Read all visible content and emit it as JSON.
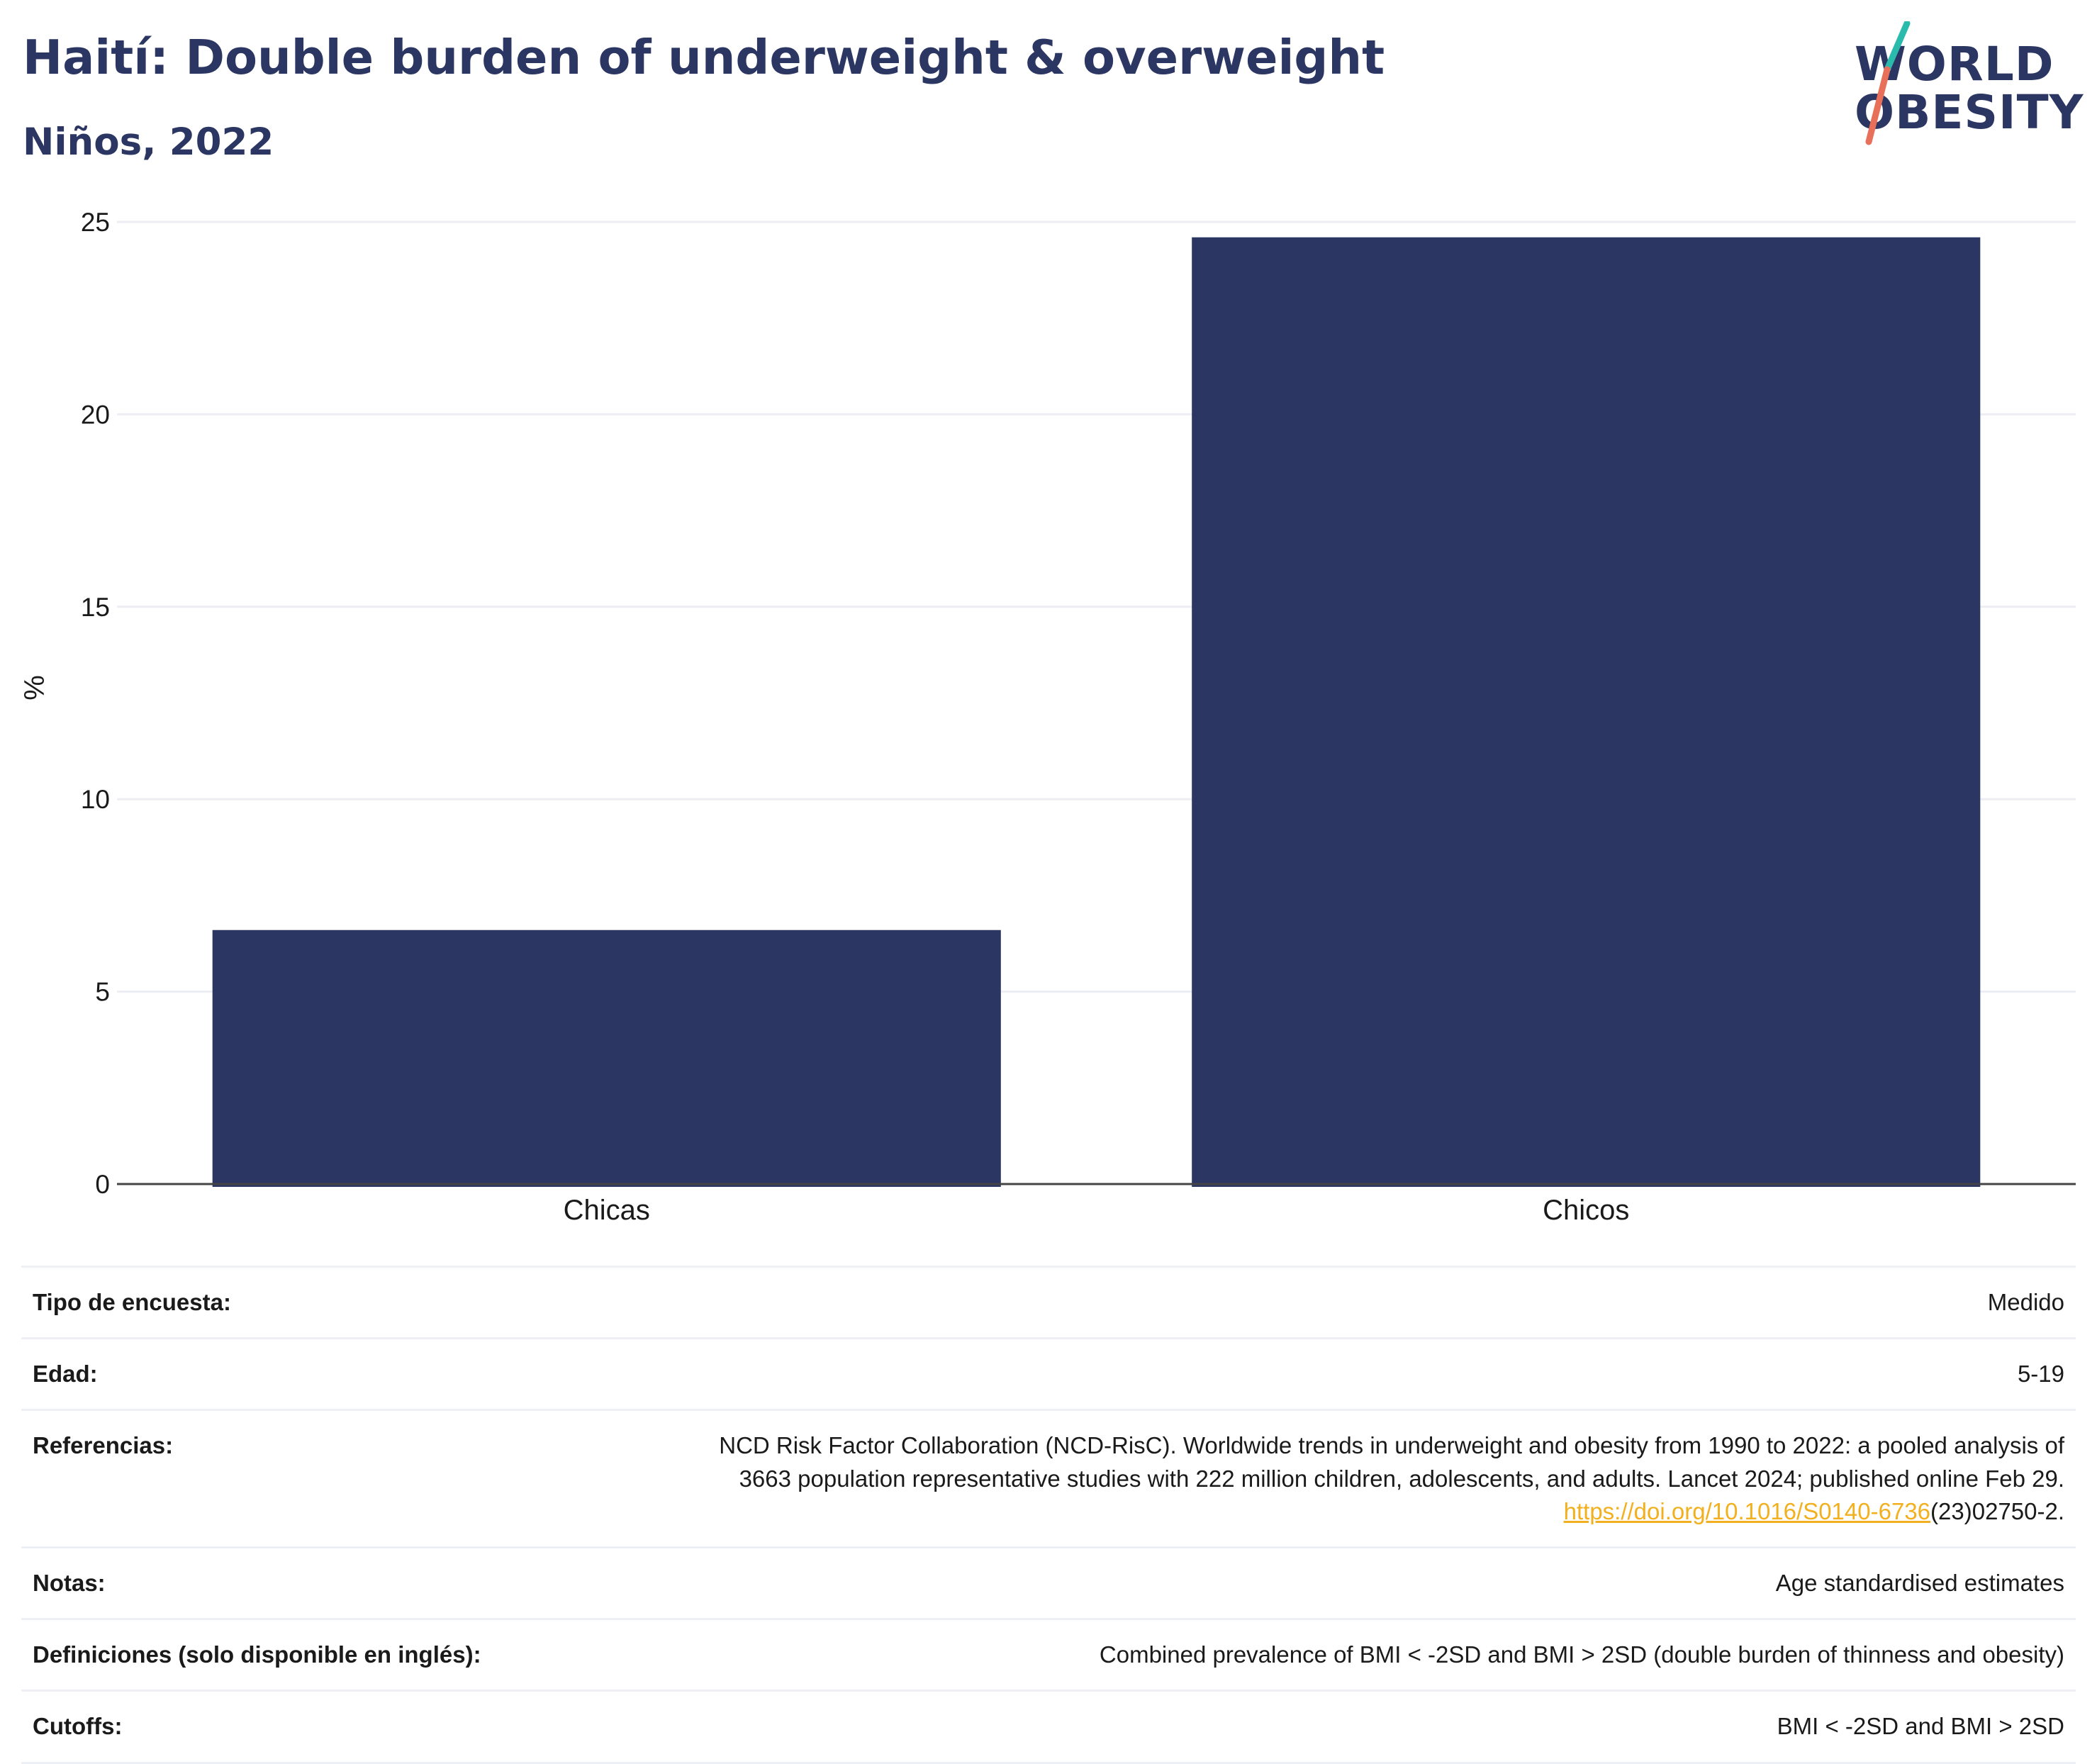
{
  "header": {
    "title": "Haití: Double burden of underweight & overweight",
    "subtitle": "Niños, 2022"
  },
  "logo": {
    "line1": "WORLD",
    "line2": "OBESITY",
    "brand_color": "#2b3663",
    "slash_top_color": "#2bbbad",
    "slash_bottom_color": "#e8705b"
  },
  "colors": {
    "bar": "#2b3663",
    "grid": "#eceef4",
    "axis": "#444444",
    "link": "#f2b01e"
  },
  "chart_data": {
    "type": "bar",
    "categories": [
      "Chicas",
      "Chicos"
    ],
    "values": [
      6.6,
      24.6
    ],
    "ylabel": "%",
    "xlabel": "",
    "ylim": [
      0,
      25
    ],
    "yticks": [
      0,
      5,
      10,
      15,
      20,
      25
    ],
    "grid": true
  },
  "info": {
    "rows": [
      {
        "label": "Tipo de encuesta:",
        "value": "Medido"
      },
      {
        "label": "Edad:",
        "value": "5-19"
      },
      {
        "label": "Referencias:",
        "value": "NCD Risk Factor Collaboration (NCD-RisC). Worldwide trends in underweight and obesity from 1990 to 2022: a pooled analysis of 3663 population representative studies with 222 million children, adolescents, and adults. Lancet 2024; published online Feb 29.",
        "link": "https://doi.org/10.1016/S0140-6736",
        "link_suffix": "(23)02750-2."
      },
      {
        "label": "Notas:",
        "value": "Age standardised estimates"
      },
      {
        "label": "Definiciones (solo disponible en inglés):",
        "value": "Combined prevalence of BMI < -2SD and BMI > 2SD (double burden of thinness and obesity)"
      },
      {
        "label": "Cutoffs:",
        "value": "BMI < -2SD and BMI > 2SD"
      }
    ]
  }
}
